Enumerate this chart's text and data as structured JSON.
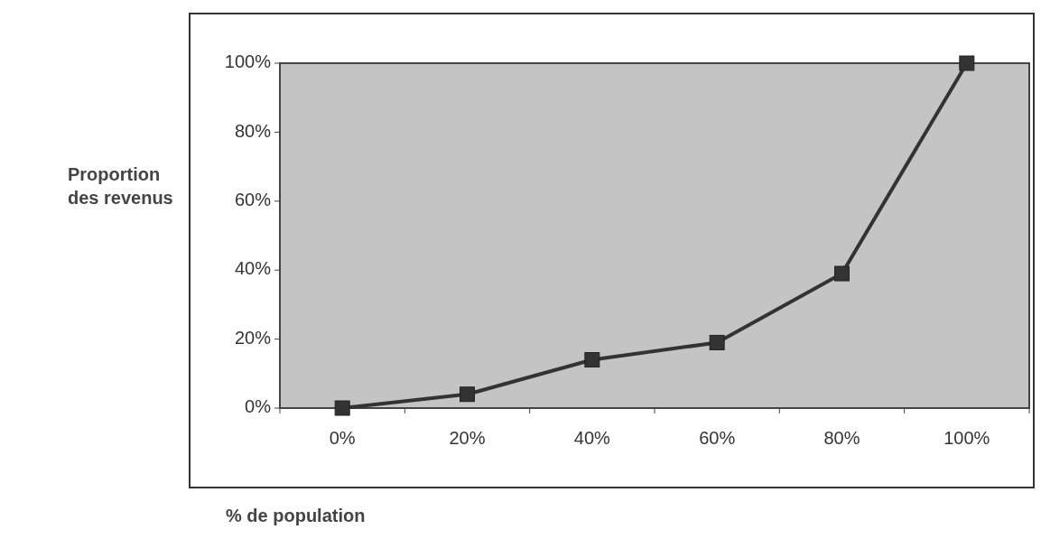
{
  "chart_data": {
    "type": "line",
    "xlabel": "% de population",
    "ylabel": "Proportion des revenus",
    "categories": [
      "0%",
      "20%",
      "40%",
      "60%",
      "80%",
      "100%"
    ],
    "series": [
      {
        "color": "#333333",
        "values": [
          0,
          4,
          14,
          19,
          39,
          100
        ]
      }
    ],
    "ylim": [
      0,
      100
    ],
    "yticks": [
      {
        "value": 0,
        "label": "0%"
      },
      {
        "value": 20,
        "label": "20%"
      },
      {
        "value": 40,
        "label": "40%"
      },
      {
        "value": 60,
        "label": "60%"
      },
      {
        "value": 80,
        "label": "80%"
      },
      {
        "value": 100,
        "label": "100%"
      }
    ],
    "marker": "square",
    "line_style": "solid"
  }
}
